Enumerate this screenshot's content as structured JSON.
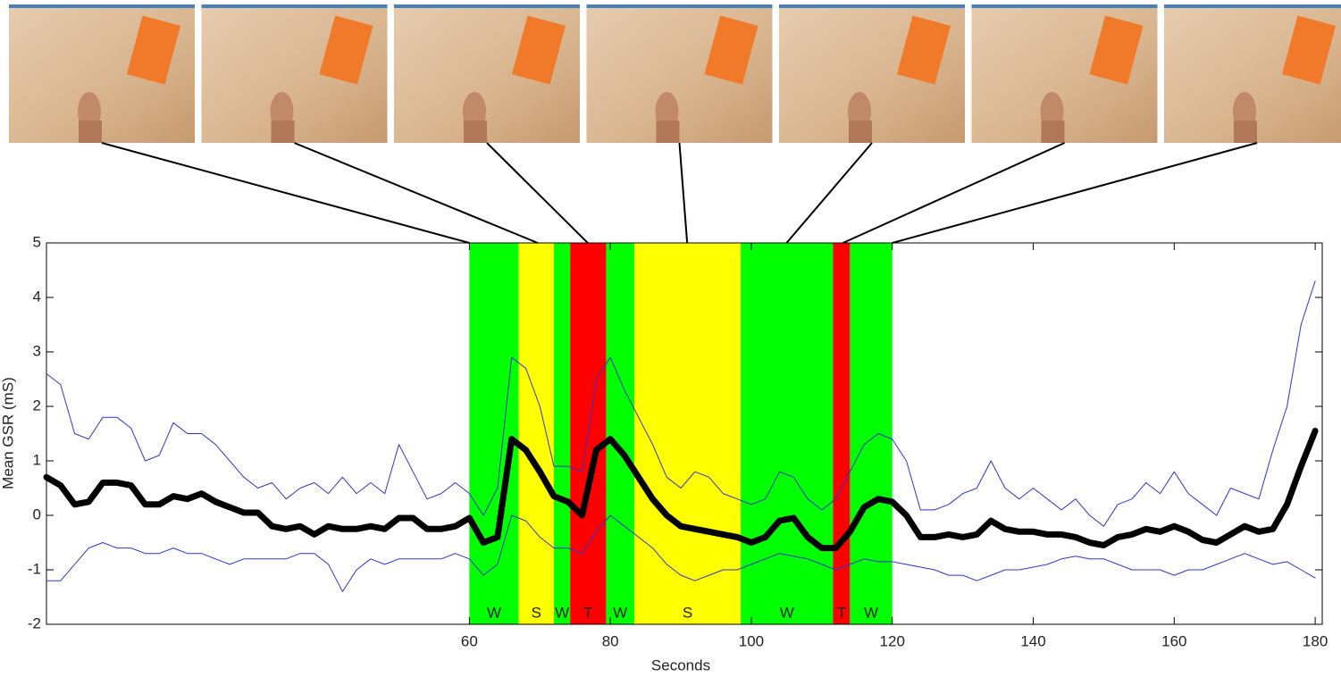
{
  "chart_data": {
    "type": "line",
    "x_label": "Seconds",
    "y_label": "Mean GSR (mS)",
    "xlim": [
      0,
      181
    ],
    "ylim": [
      -2,
      5
    ],
    "xticks": [
      60,
      80,
      100,
      120,
      140,
      160,
      180
    ],
    "yticks": [
      -2,
      -1,
      0,
      1,
      2,
      3,
      4,
      5
    ],
    "frame_times": [
      60,
      69.7,
      76.8,
      90.9,
      105,
      113,
      120
    ],
    "bands": [
      {
        "start": 60,
        "end": 67,
        "label": "W",
        "color": "#00ff00"
      },
      {
        "start": 67,
        "end": 72,
        "label": "S",
        "color": "#ffff00"
      },
      {
        "start": 72,
        "end": 74.3,
        "label": "W",
        "color": "#00ff00"
      },
      {
        "start": 74.3,
        "end": 79.4,
        "label": "T",
        "color": "#ff0000"
      },
      {
        "start": 79.4,
        "end": 83.4,
        "label": "W",
        "color": "#00ff00"
      },
      {
        "start": 83.4,
        "end": 98.5,
        "label": "S",
        "color": "#ffff00"
      },
      {
        "start": 98.5,
        "end": 111.6,
        "label": "W",
        "color": "#00ff00"
      },
      {
        "start": 111.6,
        "end": 114,
        "label": "T",
        "color": "#ff0000"
      },
      {
        "start": 114,
        "end": 120,
        "label": "W",
        "color": "#00ff00"
      }
    ],
    "x": [
      0,
      2,
      4,
      6,
      8,
      10,
      12,
      14,
      16,
      18,
      20,
      22,
      24,
      26,
      28,
      30,
      32,
      34,
      36,
      38,
      40,
      42,
      44,
      46,
      48,
      50,
      52,
      54,
      56,
      58,
      60,
      62,
      64,
      66,
      68,
      70,
      72,
      74,
      76,
      78,
      80,
      82,
      84,
      86,
      88,
      90,
      92,
      94,
      96,
      98,
      100,
      102,
      104,
      106,
      108,
      110,
      112,
      114,
      116,
      118,
      120,
      122,
      124,
      126,
      128,
      130,
      132,
      134,
      136,
      138,
      140,
      142,
      144,
      146,
      148,
      150,
      152,
      154,
      156,
      158,
      160,
      162,
      164,
      166,
      168,
      170,
      172,
      174,
      176,
      178,
      180
    ],
    "series": [
      {
        "color": "#3333cc",
        "width": 1,
        "values": [
          2.6,
          2.4,
          1.5,
          1.4,
          1.8,
          1.8,
          1.6,
          1.0,
          1.1,
          1.7,
          1.5,
          1.5,
          1.3,
          1.0,
          0.7,
          0.5,
          0.6,
          0.3,
          0.5,
          0.6,
          0.4,
          0.7,
          0.4,
          0.6,
          0.4,
          1.3,
          0.8,
          0.3,
          0.4,
          0.6,
          0.4,
          0.0,
          0.5,
          2.9,
          2.7,
          2.0,
          0.9,
          0.9,
          0.8,
          2.5,
          2.9,
          2.3,
          1.8,
          1.3,
          0.7,
          0.5,
          0.8,
          0.7,
          0.4,
          0.3,
          0.2,
          0.3,
          0.8,
          0.7,
          0.3,
          0.1,
          0.3,
          0.8,
          1.3,
          1.5,
          1.4,
          1.0,
          0.1,
          0.1,
          0.2,
          0.4,
          0.5,
          1.0,
          0.5,
          0.3,
          0.5,
          0.3,
          0.1,
          0.3,
          0.0,
          -0.2,
          0.2,
          0.3,
          0.6,
          0.4,
          0.8,
          0.4,
          0.2,
          0.0,
          0.5,
          0.4,
          0.3,
          1.2,
          2.0,
          3.5,
          4.3
        ]
      },
      {
        "color": "#3333cc",
        "width": 1,
        "values": [
          -1.2,
          -1.2,
          -0.9,
          -0.6,
          -0.5,
          -0.6,
          -0.6,
          -0.7,
          -0.7,
          -0.6,
          -0.7,
          -0.7,
          -0.8,
          -0.9,
          -0.8,
          -0.8,
          -0.8,
          -0.8,
          -0.7,
          -0.7,
          -0.9,
          -1.4,
          -1.0,
          -0.8,
          -0.9,
          -0.8,
          -0.8,
          -0.8,
          -0.8,
          -0.7,
          -0.8,
          -1.1,
          -0.9,
          0.0,
          -0.1,
          -0.4,
          -0.6,
          -0.6,
          -0.7,
          -0.3,
          0.0,
          -0.2,
          -0.4,
          -0.6,
          -0.9,
          -1.1,
          -1.2,
          -1.1,
          -1.0,
          -1.0,
          -0.9,
          -0.8,
          -0.7,
          -0.75,
          -0.8,
          -0.9,
          -1.0,
          -0.9,
          -0.8,
          -0.85,
          -0.85,
          -0.9,
          -0.95,
          -1.0,
          -1.1,
          -1.1,
          -1.2,
          -1.1,
          -1.0,
          -1.0,
          -0.95,
          -0.9,
          -0.8,
          -0.75,
          -0.8,
          -0.8,
          -0.9,
          -1.0,
          -1.0,
          -1.0,
          -1.1,
          -1.0,
          -1.0,
          -0.9,
          -0.8,
          -0.7,
          -0.8,
          -0.9,
          -0.85,
          -1.0,
          -1.15
        ]
      },
      {
        "color": "#000000",
        "width": 7,
        "values": [
          0.7,
          0.55,
          0.2,
          0.25,
          0.6,
          0.6,
          0.55,
          0.2,
          0.2,
          0.35,
          0.3,
          0.4,
          0.25,
          0.15,
          0.05,
          0.05,
          -0.2,
          -0.25,
          -0.2,
          -0.35,
          -0.2,
          -0.25,
          -0.25,
          -0.2,
          -0.25,
          -0.05,
          -0.05,
          -0.25,
          -0.25,
          -0.2,
          -0.05,
          -0.5,
          -0.4,
          1.4,
          1.2,
          0.8,
          0.35,
          0.25,
          0.0,
          1.2,
          1.4,
          1.1,
          0.7,
          0.3,
          0.0,
          -0.2,
          -0.25,
          -0.3,
          -0.35,
          -0.4,
          -0.5,
          -0.4,
          -0.1,
          -0.05,
          -0.4,
          -0.6,
          -0.6,
          -0.3,
          0.15,
          0.3,
          0.25,
          0.0,
          -0.4,
          -0.4,
          -0.35,
          -0.4,
          -0.35,
          -0.1,
          -0.25,
          -0.3,
          -0.3,
          -0.35,
          -0.35,
          -0.4,
          -0.5,
          -0.55,
          -0.4,
          -0.35,
          -0.25,
          -0.3,
          -0.2,
          -0.3,
          -0.45,
          -0.5,
          -0.35,
          -0.2,
          -0.3,
          -0.25,
          0.2,
          0.9,
          1.55
        ]
      }
    ]
  }
}
